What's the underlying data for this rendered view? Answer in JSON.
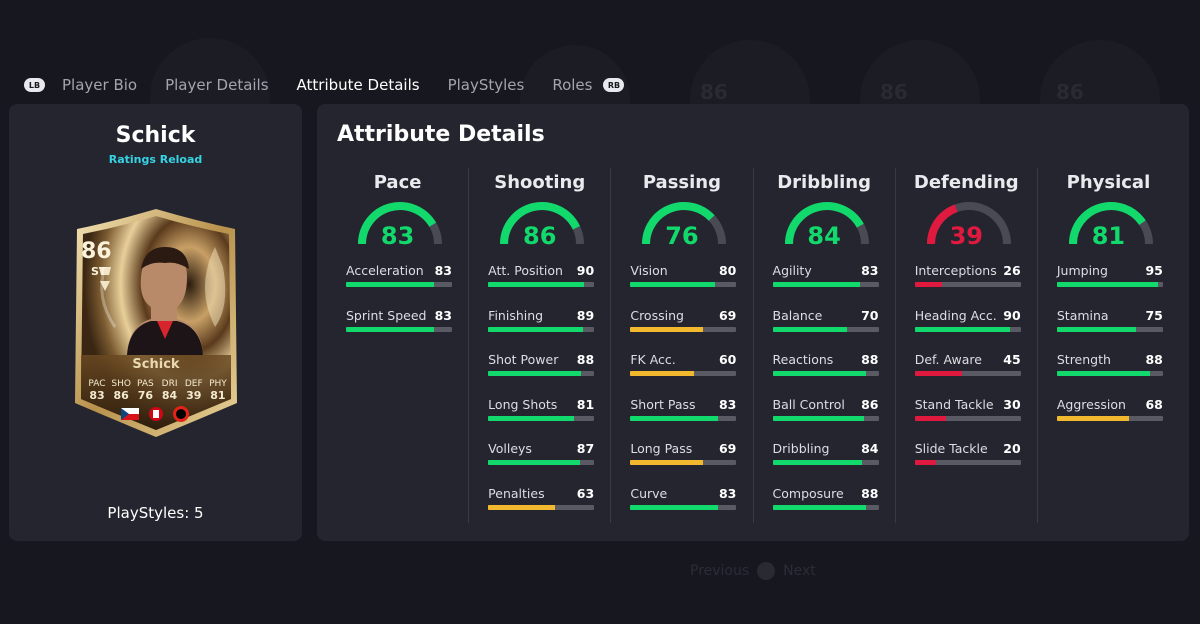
{
  "colors": {
    "green": "#12d96b",
    "yellow": "#f2b92e",
    "red": "#e0193f",
    "track": "#4a4a55"
  },
  "tabs": {
    "lb": "LB",
    "rb": "RB",
    "items": [
      "Player Bio",
      "Player Details",
      "Attribute Details",
      "PlayStyles",
      "Roles"
    ],
    "active_index": 2
  },
  "background_nav": {
    "previous": "Previous",
    "next": "Next"
  },
  "player": {
    "name": "Schick",
    "promo": "Ratings Reload",
    "playstyles_label": "PlayStyles: 5",
    "card": {
      "rating": "86",
      "position": "ST",
      "name": "Schick",
      "stats": [
        {
          "label": "PAC",
          "value": "83"
        },
        {
          "label": "SHO",
          "value": "86"
        },
        {
          "label": "PAS",
          "value": "76"
        },
        {
          "label": "DRI",
          "value": "84"
        },
        {
          "label": "DEF",
          "value": "39"
        },
        {
          "label": "PHY",
          "value": "81"
        }
      ]
    }
  },
  "attributes": {
    "title": "Attribute Details",
    "categories": [
      {
        "name": "Pace",
        "value": 83,
        "stats": [
          {
            "name": "Acceleration",
            "value": 83
          },
          {
            "name": "Sprint Speed",
            "value": 83
          }
        ]
      },
      {
        "name": "Shooting",
        "value": 86,
        "stats": [
          {
            "name": "Att. Position",
            "value": 90
          },
          {
            "name": "Finishing",
            "value": 89
          },
          {
            "name": "Shot Power",
            "value": 88
          },
          {
            "name": "Long Shots",
            "value": 81
          },
          {
            "name": "Volleys",
            "value": 87
          },
          {
            "name": "Penalties",
            "value": 63
          }
        ]
      },
      {
        "name": "Passing",
        "value": 76,
        "stats": [
          {
            "name": "Vision",
            "value": 80
          },
          {
            "name": "Crossing",
            "value": 69
          },
          {
            "name": "FK Acc.",
            "value": 60
          },
          {
            "name": "Short Pass",
            "value": 83
          },
          {
            "name": "Long Pass",
            "value": 69
          },
          {
            "name": "Curve",
            "value": 83
          }
        ]
      },
      {
        "name": "Dribbling",
        "value": 84,
        "stats": [
          {
            "name": "Agility",
            "value": 83
          },
          {
            "name": "Balance",
            "value": 70
          },
          {
            "name": "Reactions",
            "value": 88
          },
          {
            "name": "Ball Control",
            "value": 86
          },
          {
            "name": "Dribbling",
            "value": 84
          },
          {
            "name": "Composure",
            "value": 88
          }
        ]
      },
      {
        "name": "Defending",
        "value": 39,
        "stats": [
          {
            "name": "Interceptions",
            "value": 26
          },
          {
            "name": "Heading Acc.",
            "value": 90
          },
          {
            "name": "Def. Aware",
            "value": 45
          },
          {
            "name": "Stand Tackle",
            "value": 30
          },
          {
            "name": "Slide Tackle",
            "value": 20
          }
        ]
      },
      {
        "name": "Physical",
        "value": 81,
        "stats": [
          {
            "name": "Jumping",
            "value": 95
          },
          {
            "name": "Stamina",
            "value": 75
          },
          {
            "name": "Strength",
            "value": 88
          },
          {
            "name": "Aggression",
            "value": 68
          }
        ]
      }
    ]
  }
}
